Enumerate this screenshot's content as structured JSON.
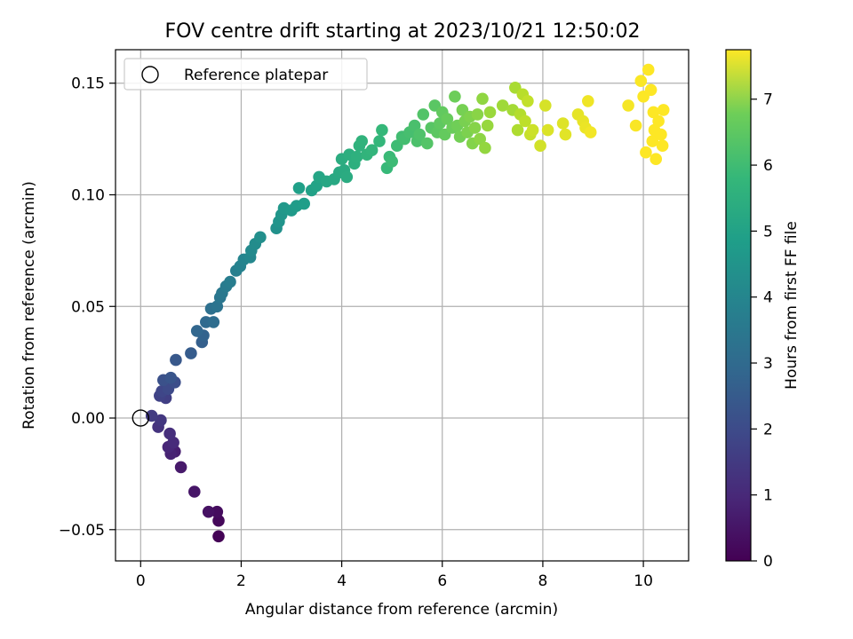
{
  "chart_data": {
    "type": "scatter",
    "title": "FOV centre drift starting at 2023/10/21 12:50:02",
    "xlabel": "Angular distance from reference (arcmin)",
    "ylabel": "Rotation from reference (arcmin)",
    "xlim": [
      -0.5,
      10.9
    ],
    "ylim": [
      -0.064,
      0.165
    ],
    "xticks": [
      0,
      2,
      4,
      6,
      8,
      10
    ],
    "xtick_labels": [
      "0",
      "2",
      "4",
      "6",
      "8",
      "10"
    ],
    "yticks": [
      -0.05,
      0.0,
      0.05,
      0.1,
      0.15
    ],
    "ytick_labels": [
      "−0.05",
      "0.00",
      "0.05",
      "0.10",
      "0.15"
    ],
    "grid": true,
    "colormap": "viridis",
    "colorbar": {
      "label": "Hours from first FF file",
      "range": [
        0,
        7.75
      ],
      "ticks": [
        0,
        1,
        2,
        3,
        4,
        5,
        6,
        7
      ],
      "tick_labels": [
        "0",
        "1",
        "2",
        "3",
        "4",
        "5",
        "6",
        "7"
      ]
    },
    "legend": {
      "placement": "top-left",
      "entries": [
        {
          "label": "Reference platepar",
          "marker": "open-circle"
        }
      ]
    },
    "reference_point": {
      "x": 0.0,
      "y": 0.0
    },
    "points": [
      [
        1.55,
        -0.053,
        0.05
      ],
      [
        1.55,
        -0.046,
        0.15
      ],
      [
        1.52,
        -0.042,
        0.25
      ],
      [
        1.35,
        -0.042,
        0.35
      ],
      [
        1.07,
        -0.033,
        0.45
      ],
      [
        0.8,
        -0.022,
        0.55
      ],
      [
        0.68,
        -0.015,
        0.65
      ],
      [
        0.6,
        -0.016,
        0.75
      ],
      [
        0.55,
        -0.013,
        0.85
      ],
      [
        0.65,
        -0.011,
        0.95
      ],
      [
        0.58,
        -0.007,
        1.05
      ],
      [
        0.35,
        -0.004,
        1.15
      ],
      [
        0.4,
        -0.001,
        1.25
      ],
      [
        0.22,
        0.001,
        1.35
      ],
      [
        0.5,
        0.009,
        1.45
      ],
      [
        0.38,
        0.01,
        1.55
      ],
      [
        0.42,
        0.012,
        1.65
      ],
      [
        0.55,
        0.013,
        1.75
      ],
      [
        0.68,
        0.016,
        1.85
      ],
      [
        0.45,
        0.017,
        1.95
      ],
      [
        0.6,
        0.018,
        2.05
      ],
      [
        0.7,
        0.026,
        2.15
      ],
      [
        1.0,
        0.029,
        2.25
      ],
      [
        1.22,
        0.034,
        2.35
      ],
      [
        1.25,
        0.037,
        2.45
      ],
      [
        1.12,
        0.039,
        2.55
      ],
      [
        1.3,
        0.043,
        2.65
      ],
      [
        1.45,
        0.043,
        2.75
      ],
      [
        1.4,
        0.049,
        2.85
      ],
      [
        1.52,
        0.05,
        2.95
      ],
      [
        1.58,
        0.054,
        3.05
      ],
      [
        1.62,
        0.056,
        3.12
      ],
      [
        1.7,
        0.059,
        3.2
      ],
      [
        1.78,
        0.061,
        3.28
      ],
      [
        1.9,
        0.066,
        3.36
      ],
      [
        1.98,
        0.068,
        3.44
      ],
      [
        2.05,
        0.071,
        3.52
      ],
      [
        2.18,
        0.072,
        3.6
      ],
      [
        2.2,
        0.075,
        3.68
      ],
      [
        2.28,
        0.078,
        3.76
      ],
      [
        2.38,
        0.081,
        3.84
      ],
      [
        2.7,
        0.085,
        3.92
      ],
      [
        2.75,
        0.088,
        4.0
      ],
      [
        2.8,
        0.091,
        4.06
      ],
      [
        2.85,
        0.094,
        4.12
      ],
      [
        3.0,
        0.093,
        4.18
      ],
      [
        3.1,
        0.095,
        4.24
      ],
      [
        3.25,
        0.096,
        4.3
      ],
      [
        3.15,
        0.103,
        4.36
      ],
      [
        3.4,
        0.102,
        4.42
      ],
      [
        3.5,
        0.104,
        4.48
      ],
      [
        3.55,
        0.108,
        4.54
      ],
      [
        3.7,
        0.106,
        4.6
      ],
      [
        3.85,
        0.107,
        4.64
      ],
      [
        3.95,
        0.11,
        4.68
      ],
      [
        4.05,
        0.111,
        4.72
      ],
      [
        4.1,
        0.108,
        4.76
      ],
      [
        4.0,
        0.116,
        4.8
      ],
      [
        4.15,
        0.118,
        4.84
      ],
      [
        4.25,
        0.114,
        4.88
      ],
      [
        4.3,
        0.117,
        4.92
      ],
      [
        4.35,
        0.122,
        4.96
      ],
      [
        4.4,
        0.124,
        5.0
      ],
      [
        4.5,
        0.118,
        5.04
      ],
      [
        4.6,
        0.12,
        5.08
      ],
      [
        4.75,
        0.124,
        5.12
      ],
      [
        4.8,
        0.129,
        5.16
      ],
      [
        4.9,
        0.112,
        5.2
      ],
      [
        4.95,
        0.117,
        5.24
      ],
      [
        5.0,
        0.115,
        5.28
      ],
      [
        5.1,
        0.122,
        5.32
      ],
      [
        5.2,
        0.126,
        5.36
      ],
      [
        5.25,
        0.125,
        5.4
      ],
      [
        5.35,
        0.128,
        5.44
      ],
      [
        5.45,
        0.131,
        5.48
      ],
      [
        5.5,
        0.124,
        5.52
      ],
      [
        5.55,
        0.127,
        5.56
      ],
      [
        5.62,
        0.136,
        5.6
      ],
      [
        5.7,
        0.123,
        5.64
      ],
      [
        5.78,
        0.13,
        5.68
      ],
      [
        5.85,
        0.14,
        5.72
      ],
      [
        5.9,
        0.128,
        5.76
      ],
      [
        5.95,
        0.132,
        5.8
      ],
      [
        6.0,
        0.137,
        5.84
      ],
      [
        6.05,
        0.127,
        5.88
      ],
      [
        6.1,
        0.134,
        5.92
      ],
      [
        6.2,
        0.13,
        5.96
      ],
      [
        6.25,
        0.144,
        6.0
      ],
      [
        6.3,
        0.131,
        6.04
      ],
      [
        6.35,
        0.126,
        6.08
      ],
      [
        6.4,
        0.138,
        6.12
      ],
      [
        6.45,
        0.133,
        6.16
      ],
      [
        6.5,
        0.128,
        6.2
      ],
      [
        6.55,
        0.135,
        6.24
      ],
      [
        6.6,
        0.123,
        6.28
      ],
      [
        6.65,
        0.13,
        6.32
      ],
      [
        6.7,
        0.136,
        6.36
      ],
      [
        6.75,
        0.125,
        6.4
      ],
      [
        6.8,
        0.143,
        6.44
      ],
      [
        6.85,
        0.121,
        6.48
      ],
      [
        6.9,
        0.131,
        6.52
      ],
      [
        6.95,
        0.137,
        6.56
      ],
      [
        7.2,
        0.14,
        6.62
      ],
      [
        7.4,
        0.138,
        6.68
      ],
      [
        7.45,
        0.148,
        6.74
      ],
      [
        7.5,
        0.129,
        6.8
      ],
      [
        7.55,
        0.136,
        6.86
      ],
      [
        7.6,
        0.145,
        6.92
      ],
      [
        7.65,
        0.133,
        6.98
      ],
      [
        7.7,
        0.142,
        7.04
      ],
      [
        7.75,
        0.127,
        7.1
      ],
      [
        7.8,
        0.129,
        7.16
      ],
      [
        7.95,
        0.122,
        7.22
      ],
      [
        8.05,
        0.14,
        7.28
      ],
      [
        8.1,
        0.129,
        7.34
      ],
      [
        8.4,
        0.132,
        7.38
      ],
      [
        8.45,
        0.127,
        7.42
      ],
      [
        8.7,
        0.136,
        7.46
      ],
      [
        8.8,
        0.133,
        7.5
      ],
      [
        8.85,
        0.13,
        7.54
      ],
      [
        8.9,
        0.142,
        7.58
      ],
      [
        8.95,
        0.128,
        7.62
      ],
      [
        9.7,
        0.14,
        7.66
      ],
      [
        9.85,
        0.131,
        7.7
      ],
      [
        9.95,
        0.151,
        7.72
      ],
      [
        10.0,
        0.144,
        7.74
      ],
      [
        10.05,
        0.119,
        7.75
      ],
      [
        10.1,
        0.156,
        7.75
      ],
      [
        10.15,
        0.147,
        7.75
      ],
      [
        10.18,
        0.124,
        7.75
      ],
      [
        10.2,
        0.137,
        7.75
      ],
      [
        10.22,
        0.129,
        7.75
      ],
      [
        10.25,
        0.116,
        7.75
      ],
      [
        10.3,
        0.133,
        7.75
      ],
      [
        10.35,
        0.127,
        7.75
      ],
      [
        10.38,
        0.122,
        7.75
      ],
      [
        10.4,
        0.138,
        7.75
      ]
    ]
  }
}
